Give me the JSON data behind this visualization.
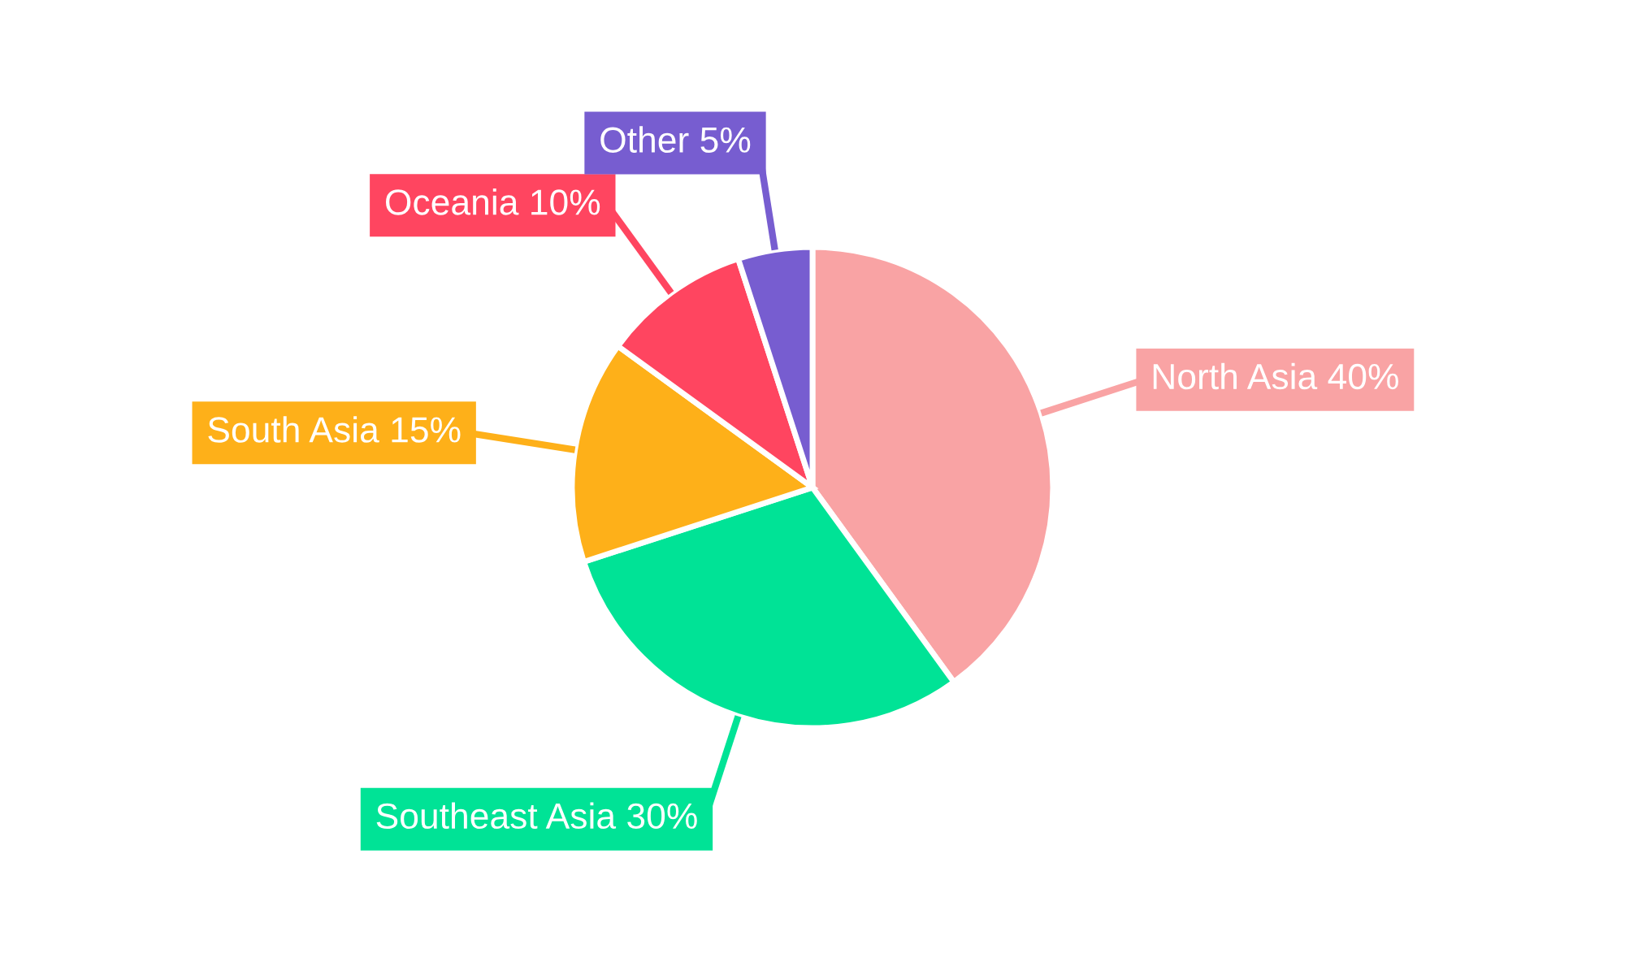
{
  "chart_data": {
    "type": "pie",
    "categories": [
      "North Asia",
      "Southeast Asia",
      "South Asia",
      "Oceania",
      "Other"
    ],
    "values": [
      40,
      30,
      15,
      10,
      5
    ],
    "value_labels": [
      "40%",
      "30%",
      "15%",
      "10%",
      "5%"
    ],
    "colors": [
      "#f9a3a4",
      "#00e396",
      "#feb019",
      "#ff4560",
      "#775dd0"
    ],
    "legend": false
  }
}
